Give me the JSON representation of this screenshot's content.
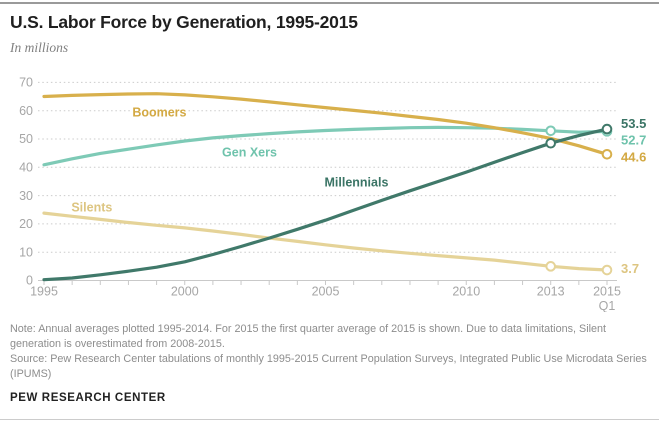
{
  "header": {
    "title": "U.S. Labor Force by Generation, 1995-2015",
    "subtitle": "In millions"
  },
  "notes": {
    "note": "Note: Annual averages plotted 1995-2014. For 2015 the first quarter average of 2015 is shown. Due to data limitations, Silent generation is overestimated from 2008-2015.",
    "source": "Source: Pew Research Center tabulations of monthly 1995-2015 Current Population Surveys, Integrated Public Use Microdata Series (IPUMS)",
    "footer": "PEW RESEARCH CENTER"
  },
  "chart_data": {
    "type": "line",
    "x_start_year": 1995,
    "x_end_label": "2015 Q1",
    "years": [
      1995,
      1996,
      1997,
      1998,
      1999,
      2000,
      2001,
      2002,
      2003,
      2004,
      2005,
      2006,
      2007,
      2008,
      2009,
      2010,
      2011,
      2012,
      2013,
      2014,
      2015
    ],
    "x_ticks": [
      {
        "year": 1995,
        "label": "1995"
      },
      {
        "year": 2000,
        "label": "2000"
      },
      {
        "year": 2005,
        "label": "2005"
      },
      {
        "year": 2010,
        "label": "2010"
      },
      {
        "year": 2013,
        "label": "2013"
      },
      {
        "year": 2015,
        "label": "2015",
        "sub": "Q1"
      }
    ],
    "ylim": [
      0,
      70
    ],
    "yticks": [
      0,
      10,
      20,
      30,
      40,
      50,
      60,
      70
    ],
    "grid": "dotted-horizontal",
    "legend_position": "inline-labels",
    "axis_color": "#c9c9c9",
    "tick_label_color": "#a6a6a6",
    "series": [
      {
        "name": "Silents",
        "color": "#e5d398",
        "label_color": "#ddc581",
        "values": [
          23.8,
          22.7,
          21.6,
          20.5,
          19.5,
          18.6,
          17.5,
          16.3,
          15.0,
          13.8,
          12.6,
          11.5,
          10.5,
          9.6,
          8.8,
          8.0,
          7.2,
          6.1,
          5.0,
          4.2,
          3.7
        ],
        "label_at": {
          "year": 1996.7,
          "value": 26.0
        },
        "marker_indices": [
          18,
          20
        ],
        "end_label": "3.7"
      },
      {
        "name": "Gen Xers",
        "color": "#7ecab6",
        "label_color": "#6fc3ac",
        "values": [
          40.9,
          43.0,
          44.9,
          46.4,
          47.9,
          49.3,
          50.4,
          51.2,
          51.9,
          52.5,
          53.0,
          53.4,
          53.7,
          54.0,
          54.1,
          54.0,
          53.8,
          53.4,
          52.9,
          52.4,
          52.7
        ],
        "label_at": {
          "year": 2002.3,
          "value": 45.4
        },
        "marker_indices": [
          18,
          20
        ],
        "end_label": "52.7"
      },
      {
        "name": "Boomers",
        "color": "#d8b04c",
        "label_color": "#d3a943",
        "values": [
          65.0,
          65.4,
          65.7,
          65.9,
          66.0,
          65.6,
          64.9,
          64.1,
          63.1,
          62.1,
          61.1,
          60.1,
          59.1,
          58.0,
          56.9,
          55.6,
          54.0,
          52.2,
          50.2,
          47.6,
          44.6
        ],
        "label_at": {
          "year": 1999.1,
          "value": 59.5
        },
        "marker_indices": [
          20
        ],
        "end_label": "44.6"
      },
      {
        "name": "Millennials",
        "color": "#40796a",
        "label_color": "#3a7465",
        "values": [
          0.3,
          0.9,
          2.0,
          3.3,
          4.7,
          6.6,
          9.2,
          12.0,
          15.0,
          18.1,
          21.3,
          24.8,
          28.3,
          31.7,
          35.0,
          38.3,
          41.8,
          45.2,
          48.5,
          51.2,
          53.5
        ],
        "label_at": {
          "year": 2006.1,
          "value": 34.8
        },
        "marker_indices": [
          18,
          20
        ],
        "end_label": "53.5"
      }
    ]
  }
}
